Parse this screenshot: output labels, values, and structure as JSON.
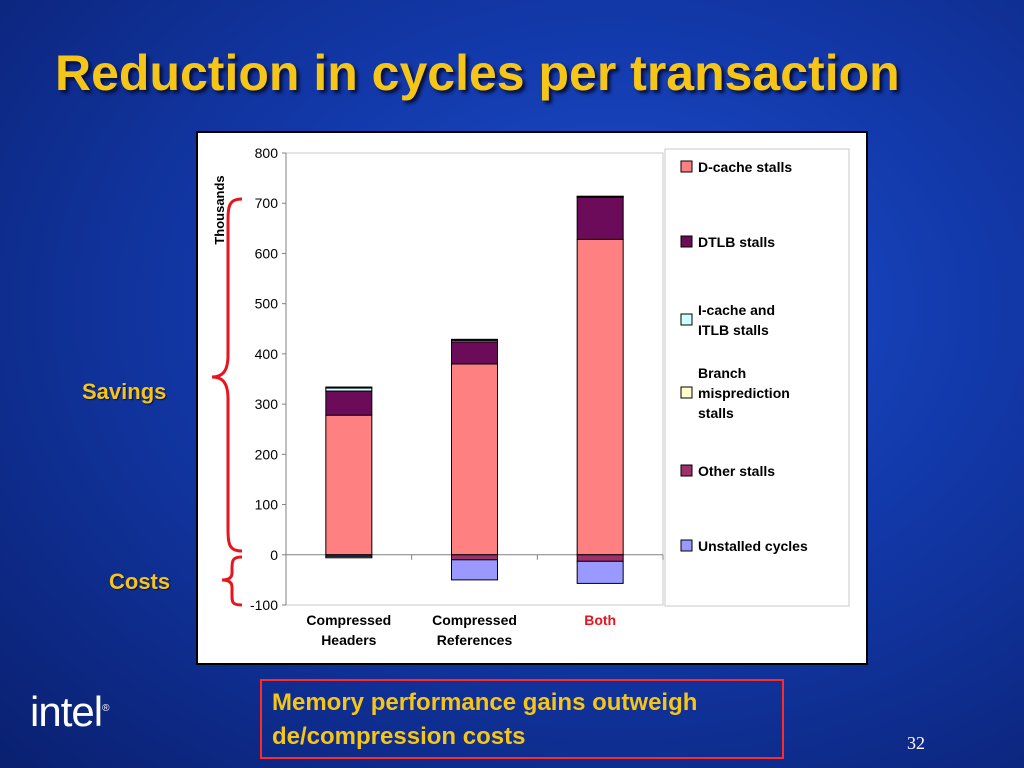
{
  "slide": {
    "title": "Reduction in cycles per transaction",
    "savings_label": "Savings",
    "costs_label": "Costs",
    "note_line1": "Memory performance gains outweigh",
    "note_line2": "de/compression costs",
    "logo_text": "intel",
    "logo_mark": "®",
    "page_number": "32"
  },
  "colors": {
    "title": "#f5c518",
    "highlight": "#e8141e"
  },
  "chart_data": {
    "type": "bar",
    "stacked": true,
    "ylabel": "Thousands",
    "ylim": [
      -100,
      800
    ],
    "yticks": [
      800,
      700,
      600,
      500,
      400,
      300,
      200,
      100,
      0,
      -100
    ],
    "grid": false,
    "legend_position": "right",
    "categories": [
      "Compressed Headers",
      "Compressed References",
      "Both"
    ],
    "category_lines": [
      [
        "Compressed",
        "Headers"
      ],
      [
        "Compressed",
        "References"
      ],
      [
        "Both"
      ]
    ],
    "category_colors": [
      "#000000",
      "#000000",
      "#e8141e"
    ],
    "series": [
      {
        "name": "D-cache stalls",
        "name_lines": [
          "D-cache stalls"
        ],
        "color": "#ff8080",
        "values": [
          278,
          380,
          628
        ]
      },
      {
        "name": "DTLB stalls",
        "name_lines": [
          "DTLB stalls"
        ],
        "color": "#6b0b5a",
        "values": [
          48,
          44,
          84
        ]
      },
      {
        "name": "I-cache and ITLB stalls",
        "name_lines": [
          "I-cache and",
          "ITLB stalls"
        ],
        "color": "#ccffff",
        "values": [
          6,
          3,
          1
        ]
      },
      {
        "name": "Branch misprediction stalls",
        "name_lines": [
          "Branch",
          "misprediction",
          "stalls"
        ],
        "color": "#ffffcc",
        "values": [
          2,
          2,
          1
        ]
      },
      {
        "name": "Other stalls",
        "name_lines": [
          "Other stalls"
        ],
        "color": "#a0306a",
        "values": [
          -3,
          -10,
          -13
        ]
      },
      {
        "name": "Unstalled cycles",
        "name_lines": [
          "Unstalled cycles"
        ],
        "color": "#9999ff",
        "values": [
          -3,
          -40,
          -44
        ]
      }
    ]
  }
}
